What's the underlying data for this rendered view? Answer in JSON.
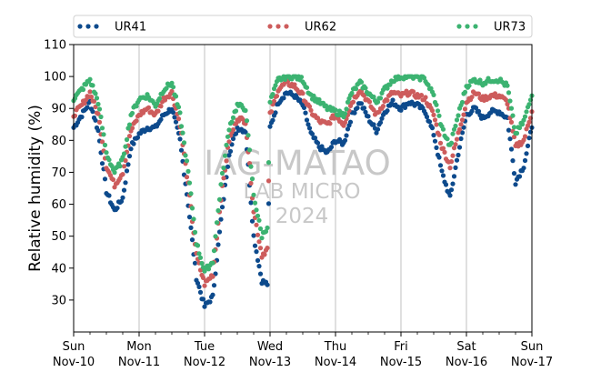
{
  "chart_data": {
    "type": "scatter",
    "ylabel": "Relative humidity (%)",
    "ylim": [
      20,
      110
    ],
    "yticks": [
      30,
      40,
      50,
      60,
      70,
      80,
      90,
      100,
      110
    ],
    "xlim": [
      "2024-11-10",
      "2024-11-17"
    ],
    "x_tick_labels": [
      {
        "date": "2024-11-10",
        "day": "Sun",
        "label": "Nov-10"
      },
      {
        "date": "2024-11-11",
        "day": "Mon",
        "label": "Nov-11"
      },
      {
        "date": "2024-11-12",
        "day": "Tue",
        "label": "Nov-12"
      },
      {
        "date": "2024-11-13",
        "day": "Wed",
        "label": "Nov-13"
      },
      {
        "date": "2024-11-14",
        "day": "Thu",
        "label": "Nov-14"
      },
      {
        "date": "2024-11-15",
        "day": "Fri",
        "label": "Nov-15"
      },
      {
        "date": "2024-11-16",
        "day": "Sat",
        "label": "Nov-16"
      },
      {
        "date": "2024-11-17",
        "day": "Sun",
        "label": "Nov-17"
      }
    ],
    "grid": "vertical at day ticks",
    "legend": "top, outside plot",
    "series": [
      {
        "name": "UR41",
        "color": "#0d4a8c",
        "points": [
          [
            "2024-11-10 00:00",
            84
          ],
          [
            "2024-11-10 03:00",
            88
          ],
          [
            "2024-11-10 06:00",
            92
          ],
          [
            "2024-11-10 09:00",
            83
          ],
          [
            "2024-11-10 12:00",
            64
          ],
          [
            "2024-11-10 15:00",
            58
          ],
          [
            "2024-11-10 18:00",
            62
          ],
          [
            "2024-11-10 21:00",
            78
          ],
          [
            "2024-11-11 00:00",
            82
          ],
          [
            "2024-11-11 03:00",
            84
          ],
          [
            "2024-11-11 06:00",
            84
          ],
          [
            "2024-11-11 09:00",
            88
          ],
          [
            "2024-11-11 12:00",
            90
          ],
          [
            "2024-11-11 15:00",
            80
          ],
          [
            "2024-11-11 18:00",
            60
          ],
          [
            "2024-11-11 21:00",
            37
          ],
          [
            "2024-11-12 00:00",
            28
          ],
          [
            "2024-11-12 03:00",
            31
          ],
          [
            "2024-11-12 06:00",
            55
          ],
          [
            "2024-11-12 09:00",
            76
          ],
          [
            "2024-11-12 12:00",
            84
          ],
          [
            "2024-11-12 15:00",
            83
          ],
          [
            "2024-11-12 18:00",
            50
          ],
          [
            "2024-11-12 21:00",
            36
          ],
          [
            "2024-11-12 23:00",
            35
          ],
          [
            "2024-11-13 00:00",
            84
          ],
          [
            "2024-11-13 03:00",
            92
          ],
          [
            "2024-11-13 06:00",
            95
          ],
          [
            "2024-11-13 09:00",
            94
          ],
          [
            "2024-11-13 12:00",
            91
          ],
          [
            "2024-11-13 15:00",
            82
          ],
          [
            "2024-11-13 18:00",
            78
          ],
          [
            "2024-11-13 21:00",
            76
          ],
          [
            "2024-11-14 00:00",
            80
          ],
          [
            "2024-11-14 03:00",
            79
          ],
          [
            "2024-11-14 06:00",
            88
          ],
          [
            "2024-11-14 09:00",
            92
          ],
          [
            "2024-11-14 12:00",
            87
          ],
          [
            "2024-11-14 15:00",
            83
          ],
          [
            "2024-11-14 18:00",
            89
          ],
          [
            "2024-11-14 21:00",
            92
          ],
          [
            "2024-11-15 00:00",
            90
          ],
          [
            "2024-11-15 03:00",
            92
          ],
          [
            "2024-11-15 06:00",
            91
          ],
          [
            "2024-11-15 09:00",
            89
          ],
          [
            "2024-11-15 12:00",
            82
          ],
          [
            "2024-11-15 15:00",
            70
          ],
          [
            "2024-11-15 18:00",
            62
          ],
          [
            "2024-11-15 21:00",
            76
          ],
          [
            "2024-11-16 00:00",
            88
          ],
          [
            "2024-11-16 03:00",
            90
          ],
          [
            "2024-11-16 06:00",
            87
          ],
          [
            "2024-11-16 09:00",
            89
          ],
          [
            "2024-11-16 12:00",
            89
          ],
          [
            "2024-11-16 15:00",
            87
          ],
          [
            "2024-11-16 18:00",
            67
          ],
          [
            "2024-11-16 21:00",
            72
          ],
          [
            "2024-11-17 00:00",
            84
          ]
        ]
      },
      {
        "name": "UR62",
        "color": "#cd5c5c",
        "points": [
          [
            "2024-11-10 00:00",
            88
          ],
          [
            "2024-11-10 03:00",
            91
          ],
          [
            "2024-11-10 06:00",
            95
          ],
          [
            "2024-11-10 09:00",
            88
          ],
          [
            "2024-11-10 12:00",
            72
          ],
          [
            "2024-11-10 15:00",
            66
          ],
          [
            "2024-11-10 18:00",
            70
          ],
          [
            "2024-11-10 21:00",
            83
          ],
          [
            "2024-11-11 00:00",
            88
          ],
          [
            "2024-11-11 03:00",
            90
          ],
          [
            "2024-11-11 06:00",
            88
          ],
          [
            "2024-11-11 09:00",
            93
          ],
          [
            "2024-11-11 12:00",
            95
          ],
          [
            "2024-11-11 15:00",
            85
          ],
          [
            "2024-11-11 18:00",
            66
          ],
          [
            "2024-11-11 21:00",
            44
          ],
          [
            "2024-11-12 00:00",
            35
          ],
          [
            "2024-11-12 03:00",
            38
          ],
          [
            "2024-11-12 06:00",
            62
          ],
          [
            "2024-11-12 09:00",
            80
          ],
          [
            "2024-11-12 12:00",
            87
          ],
          [
            "2024-11-12 15:00",
            86
          ],
          [
            "2024-11-12 18:00",
            58
          ],
          [
            "2024-11-12 21:00",
            44
          ],
          [
            "2024-11-12 23:00",
            46
          ],
          [
            "2024-11-13 00:00",
            88
          ],
          [
            "2024-11-13 03:00",
            96
          ],
          [
            "2024-11-13 06:00",
            98
          ],
          [
            "2024-11-13 09:00",
            97
          ],
          [
            "2024-11-13 12:00",
            94
          ],
          [
            "2024-11-13 15:00",
            89
          ],
          [
            "2024-11-13 18:00",
            86
          ],
          [
            "2024-11-13 21:00",
            85
          ],
          [
            "2024-11-14 00:00",
            88
          ],
          [
            "2024-11-14 03:00",
            85
          ],
          [
            "2024-11-14 06:00",
            92
          ],
          [
            "2024-11-14 09:00",
            96
          ],
          [
            "2024-11-14 12:00",
            92
          ],
          [
            "2024-11-14 15:00",
            88
          ],
          [
            "2024-11-14 18:00",
            92
          ],
          [
            "2024-11-14 21:00",
            95
          ],
          [
            "2024-11-15 00:00",
            94
          ],
          [
            "2024-11-15 03:00",
            95
          ],
          [
            "2024-11-15 06:00",
            94
          ],
          [
            "2024-11-15 09:00",
            93
          ],
          [
            "2024-11-15 12:00",
            88
          ],
          [
            "2024-11-15 15:00",
            78
          ],
          [
            "2024-11-15 18:00",
            72
          ],
          [
            "2024-11-15 21:00",
            82
          ],
          [
            "2024-11-16 00:00",
            92
          ],
          [
            "2024-11-16 03:00",
            95
          ],
          [
            "2024-11-16 06:00",
            93
          ],
          [
            "2024-11-16 09:00",
            94
          ],
          [
            "2024-11-16 12:00",
            94
          ],
          [
            "2024-11-16 15:00",
            92
          ],
          [
            "2024-11-16 18:00",
            78
          ],
          [
            "2024-11-16 21:00",
            80
          ],
          [
            "2024-11-17 00:00",
            89
          ]
        ]
      },
      {
        "name": "UR73",
        "color": "#3cb371",
        "points": [
          [
            "2024-11-10 00:00",
            93
          ],
          [
            "2024-11-10 03:00",
            96
          ],
          [
            "2024-11-10 06:00",
            99
          ],
          [
            "2024-11-10 09:00",
            92
          ],
          [
            "2024-11-10 12:00",
            76
          ],
          [
            "2024-11-10 15:00",
            70
          ],
          [
            "2024-11-10 18:00",
            74
          ],
          [
            "2024-11-10 21:00",
            88
          ],
          [
            "2024-11-11 00:00",
            93
          ],
          [
            "2024-11-11 03:00",
            94
          ],
          [
            "2024-11-11 06:00",
            91
          ],
          [
            "2024-11-11 09:00",
            96
          ],
          [
            "2024-11-11 12:00",
            98
          ],
          [
            "2024-11-11 15:00",
            88
          ],
          [
            "2024-11-11 18:00",
            70
          ],
          [
            "2024-11-11 21:00",
            48
          ],
          [
            "2024-11-12 00:00",
            39
          ],
          [
            "2024-11-12 03:00",
            42
          ],
          [
            "2024-11-12 06:00",
            66
          ],
          [
            "2024-11-12 09:00",
            84
          ],
          [
            "2024-11-12 12:00",
            91
          ],
          [
            "2024-11-12 15:00",
            90
          ],
          [
            "2024-11-12 18:00",
            63
          ],
          [
            "2024-11-12 21:00",
            50
          ],
          [
            "2024-11-12 23:00",
            53
          ],
          [
            "2024-11-13 00:00",
            92
          ],
          [
            "2024-11-13 03:00",
            99
          ],
          [
            "2024-11-13 06:00",
            100
          ],
          [
            "2024-11-13 09:00",
            100
          ],
          [
            "2024-11-13 12:00",
            99
          ],
          [
            "2024-11-13 15:00",
            94
          ],
          [
            "2024-11-13 18:00",
            92
          ],
          [
            "2024-11-13 21:00",
            90
          ],
          [
            "2024-11-14 00:00",
            89
          ],
          [
            "2024-11-14 03:00",
            88
          ],
          [
            "2024-11-14 06:00",
            95
          ],
          [
            "2024-11-14 09:00",
            98
          ],
          [
            "2024-11-14 12:00",
            95
          ],
          [
            "2024-11-14 15:00",
            92
          ],
          [
            "2024-11-14 18:00",
            96
          ],
          [
            "2024-11-14 21:00",
            99
          ],
          [
            "2024-11-15 00:00",
            100
          ],
          [
            "2024-11-15 03:00",
            100
          ],
          [
            "2024-11-15 06:00",
            100
          ],
          [
            "2024-11-15 09:00",
            99
          ],
          [
            "2024-11-15 12:00",
            94
          ],
          [
            "2024-11-15 15:00",
            84
          ],
          [
            "2024-11-15 18:00",
            78
          ],
          [
            "2024-11-15 21:00",
            88
          ],
          [
            "2024-11-16 00:00",
            97
          ],
          [
            "2024-11-16 03:00",
            99
          ],
          [
            "2024-11-16 06:00",
            98
          ],
          [
            "2024-11-16 09:00",
            99
          ],
          [
            "2024-11-16 12:00",
            99
          ],
          [
            "2024-11-16 15:00",
            97
          ],
          [
            "2024-11-16 18:00",
            82
          ],
          [
            "2024-11-16 21:00",
            86
          ],
          [
            "2024-11-17 00:00",
            94
          ]
        ]
      }
    ]
  },
  "watermark": {
    "line1": "IAG-MATAO",
    "line2": "LAB MICRO",
    "line3": "2024"
  }
}
